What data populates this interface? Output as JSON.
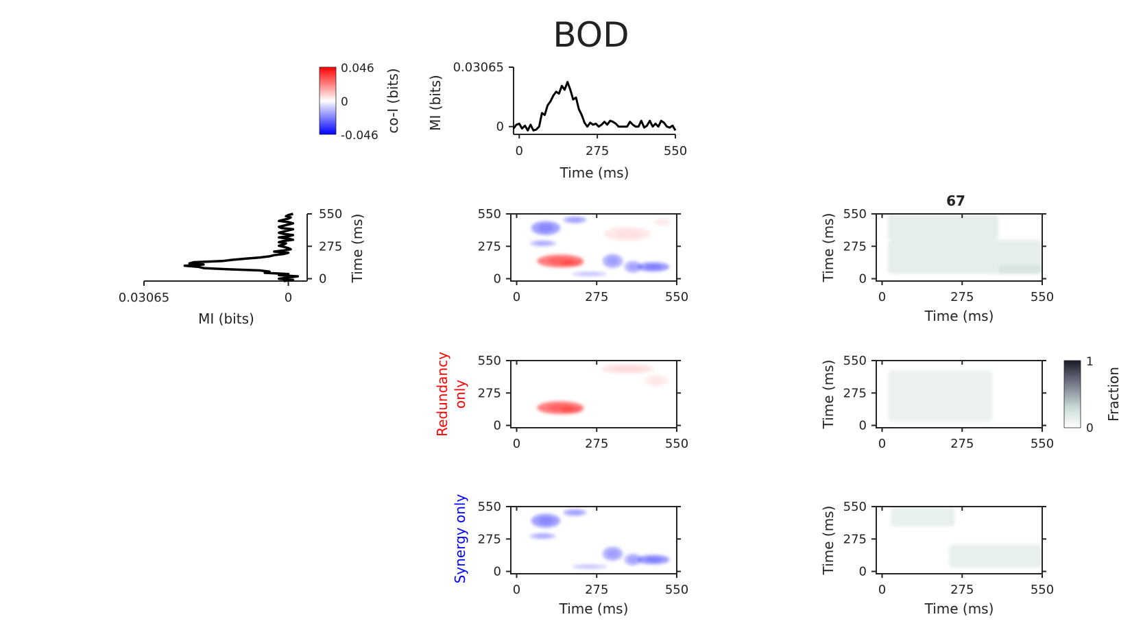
{
  "title": "BOD",
  "colors": {
    "positive": "#ff0000",
    "negative": "#0000ff",
    "line": "#000000",
    "fraction_high": "#1a1a26",
    "fraction_low": "#ffffff"
  },
  "colorbars": {
    "coi": {
      "label": "co-I (bits)",
      "max_label": "0.046",
      "mid_label": "0",
      "min_label": "-0.046",
      "range": [
        -0.046,
        0.046
      ]
    },
    "fraction": {
      "label": "Fraction",
      "max_label": "1",
      "min_label": "0",
      "range": [
        0,
        1
      ]
    }
  },
  "row_labels": {
    "redundancy": "Redundancy only",
    "redundancy_line1": "Redundancy",
    "redundancy_line2": "only",
    "synergy": "Synergy only"
  },
  "panel_titles": {
    "count": "67"
  },
  "axis_labels": {
    "time": "Time (ms)",
    "mi": "MI (bits)"
  },
  "tick_labels": {
    "time": [
      "0",
      "275",
      "550"
    ],
    "mi": [
      "0",
      "0.03065"
    ]
  },
  "chart_data": [
    {
      "type": "line",
      "name": "top-mi-timecourse",
      "xlabel": "Time (ms)",
      "ylabel": "MI (bits)",
      "xlim": [
        -20,
        550
      ],
      "ylim": [
        -0.004,
        0.03065
      ],
      "x": [
        -20,
        -10,
        0,
        10,
        20,
        30,
        40,
        50,
        60,
        70,
        80,
        90,
        100,
        110,
        120,
        130,
        140,
        150,
        160,
        170,
        180,
        190,
        200,
        210,
        220,
        230,
        240,
        250,
        260,
        270,
        280,
        290,
        300,
        310,
        320,
        330,
        340,
        350,
        360,
        370,
        380,
        390,
        400,
        410,
        420,
        430,
        440,
        450,
        460,
        470,
        480,
        490,
        500,
        510,
        520,
        530,
        540,
        550
      ],
      "y": [
        -0.001,
        0.001,
        0.0015,
        -0.001,
        0.0005,
        -0.002,
        0.001,
        -0.002,
        -0.0015,
        0.0,
        0.007,
        0.006,
        0.011,
        0.013,
        0.016,
        0.018,
        0.017,
        0.021,
        0.019,
        0.023,
        0.019,
        0.014,
        0.015,
        0.009,
        0.006,
        0.002,
        0.0,
        0.002,
        0.001,
        0.0015,
        0.0,
        0.001,
        0.0025,
        0.001,
        0.003,
        0.0025,
        0.0015,
        0.0,
        0.0,
        0.0,
        0.0,
        0.0025,
        0.001,
        0.0,
        0.0,
        0.003,
        -0.0005,
        0.0005,
        0.003,
        0.0,
        0.0015,
        0.0,
        0.003,
        0.002,
        0.0,
        -0.0005,
        0.0005,
        -0.002
      ]
    },
    {
      "type": "line",
      "name": "left-mi-timecourse",
      "xlabel": "MI (bits)",
      "ylabel": "Time (ms)",
      "xlim": [
        0.03065,
        -0.004
      ],
      "ylim": [
        -20,
        550
      ],
      "note_orientation": "vertical",
      "x": [
        0.001,
        -0.001,
        0.002,
        0.0,
        -0.002,
        0.002,
        0.0,
        0.005,
        0.004,
        0.006,
        0.013,
        0.018,
        0.019,
        0.022,
        0.018,
        0.021,
        0.02,
        0.014,
        0.012,
        0.009,
        0.006,
        0.004,
        0.003,
        0.001,
        0.0,
        0.003,
        0.001,
        -0.0005,
        0.0,
        0.001,
        0.002,
        0.001,
        0.0005,
        0.002,
        0.001,
        -0.001,
        0.0,
        0.002,
        0.0,
        -0.001,
        0.001,
        0.002,
        0.001,
        0.0,
        -0.001,
        0.0015,
        0.002,
        0.001,
        0.0,
        -0.001,
        0.0,
        0.002,
        0.001,
        0.0,
        -0.0005,
        0.0005,
        0.0,
        -0.001
      ],
      "y": [
        -20,
        -10,
        0,
        10,
        20,
        30,
        40,
        50,
        60,
        70,
        80,
        90,
        100,
        110,
        120,
        130,
        140,
        150,
        160,
        170,
        180,
        190,
        200,
        210,
        220,
        230,
        240,
        250,
        260,
        270,
        280,
        290,
        300,
        310,
        320,
        330,
        340,
        350,
        360,
        370,
        380,
        390,
        400,
        410,
        420,
        430,
        440,
        450,
        460,
        470,
        480,
        490,
        500,
        510,
        520,
        530,
        540,
        550
      ]
    },
    {
      "type": "heatmap",
      "name": "coi-full",
      "xlabel": "",
      "ylabel": "",
      "xlim": [
        -20,
        550
      ],
      "ylim": [
        -20,
        550
      ],
      "blobs": [
        {
          "x": 150,
          "y": 150,
          "sx": 80,
          "sy": 55,
          "v": 0.028
        },
        {
          "x": 190,
          "y": 130,
          "sx": 40,
          "sy": 30,
          "v": 0.012
        },
        {
          "x": 100,
          "y": 430,
          "sx": 50,
          "sy": 60,
          "v": -0.02
        },
        {
          "x": 200,
          "y": 500,
          "sx": 40,
          "sy": 30,
          "v": -0.016
        },
        {
          "x": 90,
          "y": 300,
          "sx": 45,
          "sy": 25,
          "v": -0.014
        },
        {
          "x": 330,
          "y": 150,
          "sx": 35,
          "sy": 60,
          "v": -0.016
        },
        {
          "x": 470,
          "y": 100,
          "sx": 55,
          "sy": 40,
          "v": -0.022
        },
        {
          "x": 400,
          "y": 100,
          "sx": 30,
          "sy": 50,
          "v": -0.015
        },
        {
          "x": 250,
          "y": 40,
          "sx": 60,
          "sy": 20,
          "v": -0.01
        },
        {
          "x": 380,
          "y": 380,
          "sx": 80,
          "sy": 60,
          "v": 0.005
        },
        {
          "x": 500,
          "y": 480,
          "sx": 30,
          "sy": 30,
          "v": 0.004
        }
      ]
    },
    {
      "type": "heatmap",
      "name": "coi-redundancy-only",
      "xlim": [
        -20,
        550
      ],
      "ylim": [
        -20,
        550
      ],
      "blobs": [
        {
          "x": 150,
          "y": 150,
          "sx": 80,
          "sy": 55,
          "v": 0.028
        },
        {
          "x": 190,
          "y": 130,
          "sx": 40,
          "sy": 30,
          "v": 0.012
        },
        {
          "x": 380,
          "y": 480,
          "sx": 90,
          "sy": 40,
          "v": 0.006
        },
        {
          "x": 480,
          "y": 380,
          "sx": 40,
          "sy": 50,
          "v": 0.004
        }
      ]
    },
    {
      "type": "heatmap",
      "name": "coi-synergy-only",
      "xlim": [
        -20,
        550
      ],
      "ylim": [
        -20,
        550
      ],
      "blobs": [
        {
          "x": 100,
          "y": 430,
          "sx": 50,
          "sy": 60,
          "v": -0.02
        },
        {
          "x": 200,
          "y": 500,
          "sx": 40,
          "sy": 30,
          "v": -0.016
        },
        {
          "x": 90,
          "y": 300,
          "sx": 45,
          "sy": 25,
          "v": -0.014
        },
        {
          "x": 330,
          "y": 150,
          "sx": 35,
          "sy": 60,
          "v": -0.016
        },
        {
          "x": 470,
          "y": 100,
          "sx": 55,
          "sy": 40,
          "v": -0.022
        },
        {
          "x": 400,
          "y": 100,
          "sx": 30,
          "sy": 50,
          "v": -0.015
        },
        {
          "x": 250,
          "y": 40,
          "sx": 60,
          "sy": 20,
          "v": -0.01
        }
      ]
    },
    {
      "type": "heatmap",
      "name": "fraction-full",
      "title": "67",
      "xlabel": "Time (ms)",
      "ylabel": "Time (ms)",
      "xlim": [
        -20,
        550
      ],
      "ylim": [
        -20,
        550
      ],
      "level": 0.08,
      "regions": [
        [
          20,
          550,
          40,
          330
        ],
        [
          20,
          400,
          330,
          550
        ],
        [
          400,
          550,
          40,
          120
        ]
      ]
    },
    {
      "type": "heatmap",
      "name": "fraction-redundancy",
      "xlabel": "",
      "ylabel": "Time (ms)",
      "xlim": [
        -20,
        550
      ],
      "ylim": [
        -20,
        550
      ],
      "level": 0.06,
      "regions": [
        [
          20,
          380,
          30,
          470
        ]
      ]
    },
    {
      "type": "heatmap",
      "name": "fraction-synergy",
      "xlabel": "Time (ms)",
      "ylabel": "Time (ms)",
      "xlim": [
        -20,
        550
      ],
      "ylim": [
        -20,
        550
      ],
      "level": 0.07,
      "regions": [
        [
          30,
          250,
          380,
          550
        ],
        [
          230,
          550,
          30,
          230
        ]
      ]
    }
  ]
}
